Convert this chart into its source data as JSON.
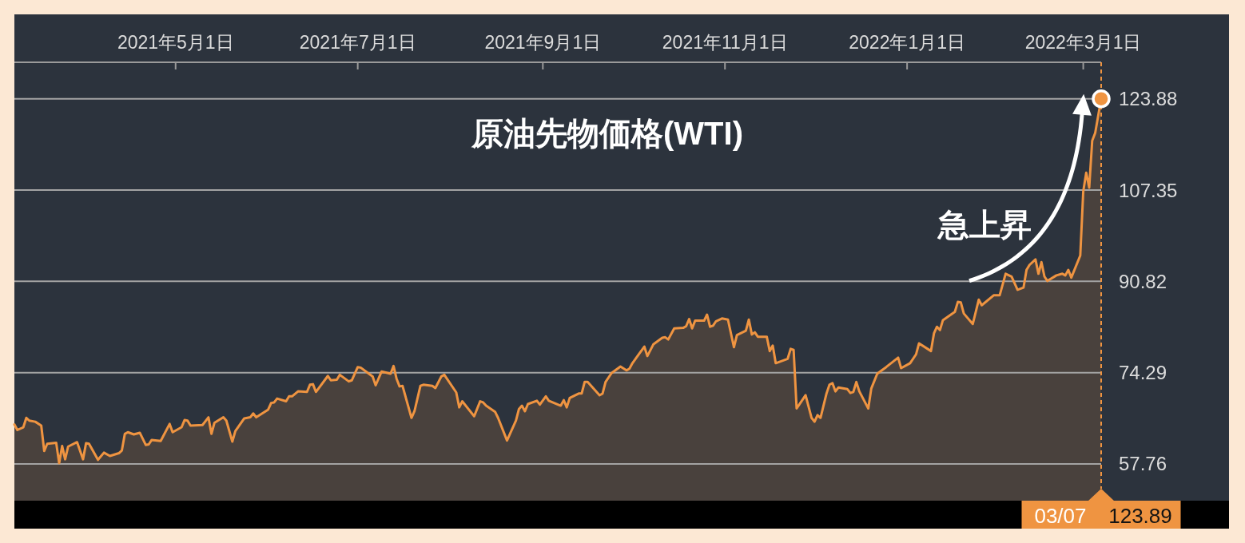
{
  "chart_data": {
    "type": "area",
    "title": "原油先物価格(WTI)",
    "x": [
      "2021-03-08",
      "2021-03-09",
      "2021-03-11",
      "2021-03-12",
      "2021-03-13",
      "2021-03-15",
      "2021-03-17",
      "2021-03-18",
      "2021-03-19",
      "2021-03-22",
      "2021-03-23",
      "2021-03-24",
      "2021-03-25",
      "2021-03-26",
      "2021-03-29",
      "2021-03-31",
      "2021-04-01",
      "2021-04-02",
      "2021-04-05",
      "2021-04-07",
      "2021-04-09",
      "2021-04-12",
      "2021-04-13",
      "2021-04-14",
      "2021-04-15",
      "2021-04-17",
      "2021-04-19",
      "2021-04-21",
      "2021-04-22",
      "2021-04-23",
      "2021-04-26",
      "2021-04-29",
      "2021-04-30",
      "2021-05-03",
      "2021-05-04",
      "2021-05-05",
      "2021-05-06",
      "2021-05-10",
      "2021-05-12",
      "2021-05-13",
      "2021-05-14",
      "2021-05-17",
      "2021-05-18",
      "2021-05-20",
      "2021-05-21",
      "2021-05-24",
      "2021-05-26",
      "2021-05-27",
      "2021-05-28",
      "2021-06-01",
      "2021-06-02",
      "2021-06-03",
      "2021-06-04",
      "2021-06-07",
      "2021-06-08",
      "2021-06-09",
      "2021-06-11",
      "2021-06-14",
      "2021-06-15",
      "2021-06-16",
      "2021-06-17",
      "2021-06-21",
      "2021-06-22",
      "2021-06-24",
      "2021-06-25",
      "2021-06-28",
      "2021-06-29",
      "2021-07-01",
      "2021-07-02",
      "2021-07-06",
      "2021-07-07",
      "2021-07-09",
      "2021-07-12",
      "2021-07-13",
      "2021-07-14",
      "2021-07-15",
      "2021-07-16",
      "2021-07-19",
      "2021-07-20",
      "2021-07-22",
      "2021-07-23",
      "2021-07-26",
      "2021-07-27",
      "2021-07-29",
      "2021-07-30",
      "2021-08-03",
      "2021-08-04",
      "2021-08-05",
      "2021-08-09",
      "2021-08-11",
      "2021-08-12",
      "2021-08-13",
      "2021-08-16",
      "2021-08-17",
      "2021-08-20",
      "2021-08-23",
      "2021-08-24",
      "2021-08-25",
      "2021-08-26",
      "2021-08-27",
      "2021-08-30",
      "2021-08-31",
      "2021-09-02",
      "2021-09-03",
      "2021-09-07",
      "2021-09-08",
      "2021-09-09",
      "2021-09-10",
      "2021-09-13",
      "2021-09-14",
      "2021-09-15",
      "2021-09-16",
      "2021-09-20",
      "2021-09-21",
      "2021-09-22",
      "2021-09-24",
      "2021-09-27",
      "2021-09-29",
      "2021-09-30",
      "2021-10-01",
      "2021-10-03",
      "2021-10-05",
      "2021-10-06",
      "2021-10-08",
      "2021-10-11",
      "2021-10-12",
      "2021-10-13",
      "2021-10-15",
      "2021-10-18",
      "2021-10-19",
      "2021-10-20",
      "2021-10-21",
      "2021-10-22",
      "2021-10-25",
      "2021-10-26",
      "2021-10-27",
      "2021-10-28",
      "2021-10-29",
      "2021-10-31",
      "2021-11-02",
      "2021-11-04",
      "2021-11-05",
      "2021-11-08",
      "2021-11-09",
      "2021-11-10",
      "2021-11-11",
      "2021-11-12",
      "2021-11-15",
      "2021-11-16",
      "2021-11-17",
      "2021-11-18",
      "2021-11-22",
      "2021-11-23",
      "2021-11-24",
      "2021-11-25",
      "2021-11-28",
      "2021-11-30",
      "2021-12-01",
      "2021-12-02",
      "2021-12-03",
      "2021-12-05",
      "2021-12-06",
      "2021-12-07",
      "2021-12-08",
      "2021-12-09",
      "2021-12-12",
      "2021-12-13",
      "2021-12-14",
      "2021-12-15",
      "2021-12-16",
      "2021-12-19",
      "2021-12-20",
      "2021-12-22",
      "2021-12-25",
      "2021-12-29",
      "2021-12-30",
      "2022-01-02",
      "2022-01-04",
      "2022-01-05",
      "2022-01-09",
      "2022-01-10",
      "2022-01-11",
      "2022-01-12",
      "2022-01-13",
      "2022-01-17",
      "2022-01-18",
      "2022-01-19",
      "2022-01-20",
      "2022-01-23",
      "2022-01-25",
      "2022-01-26",
      "2022-01-30",
      "2022-02-01",
      "2022-02-03",
      "2022-02-05",
      "2022-02-07",
      "2022-02-09",
      "2022-02-10",
      "2022-02-11",
      "2022-02-13",
      "2022-02-14",
      "2022-02-15",
      "2022-02-16",
      "2022-02-17",
      "2022-02-20",
      "2022-02-22",
      "2022-02-23",
      "2022-02-24",
      "2022-02-25",
      "2022-02-28",
      "2022-03-01",
      "2022-03-02",
      "2022-03-03",
      "2022-03-04",
      "2022-03-05",
      "2022-03-07"
    ],
    "series": [
      {
        "color": "#ef9441",
        "values": [
          64.9,
          63.9,
          64.4,
          66.1,
          65.6,
          65.4,
          64.7,
          60.1,
          61.4,
          61.6,
          57.9,
          61.0,
          58.6,
          60.9,
          61.7,
          58.6,
          61.5,
          61.4,
          58.5,
          59.8,
          59.2,
          59.7,
          60.2,
          63.2,
          63.5,
          63.1,
          63.4,
          61.2,
          61.3,
          62.1,
          61.9,
          65.0,
          63.5,
          64.4,
          65.7,
          65.6,
          64.7,
          64.8,
          66.2,
          63.2,
          65.2,
          66.2,
          65.6,
          61.8,
          63.7,
          66.0,
          66.2,
          66.9,
          66.2,
          67.6,
          68.8,
          68.9,
          69.6,
          69.1,
          70.0,
          70.0,
          70.9,
          70.8,
          72.1,
          72.2,
          70.8,
          73.7,
          72.9,
          73.0,
          73.9,
          72.7,
          72.9,
          75.3,
          75.2,
          73.6,
          72.0,
          74.5,
          74.1,
          75.5,
          73.2,
          71.8,
          71.9,
          66.1,
          67.3,
          71.9,
          72.1,
          71.9,
          71.5,
          73.6,
          73.9,
          70.7,
          68.0,
          69.1,
          66.4,
          69.1,
          68.9,
          68.3,
          67.2,
          66.1,
          62.0,
          65.6,
          67.7,
          68.3,
          67.3,
          68.6,
          69.2,
          68.5,
          70.0,
          69.2,
          68.3,
          69.3,
          68.0,
          69.7,
          70.5,
          70.5,
          72.6,
          72.6,
          70.2,
          70.5,
          72.6,
          74.2,
          75.4,
          74.7,
          75.0,
          76.0,
          77.5,
          79.0,
          77.3,
          79.4,
          80.6,
          80.7,
          80.3,
          82.3,
          82.4,
          82.7,
          84.0,
          82.3,
          83.7,
          83.7,
          84.8,
          82.6,
          82.8,
          83.6,
          84.1,
          83.9,
          78.9,
          81.1,
          81.9,
          83.9,
          81.2,
          81.6,
          80.8,
          80.8,
          78.2,
          79.2,
          76.0,
          76.8,
          78.6,
          78.4,
          67.8,
          70.2,
          66.1,
          65.4,
          66.6,
          66.1,
          70.5,
          72.1,
          72.4,
          70.9,
          71.6,
          71.3,
          70.6,
          70.8,
          72.6,
          70.9,
          67.8,
          71.4,
          74.1,
          75.3,
          77.0,
          75.1,
          76.0,
          77.6,
          79.6,
          78.2,
          81.4,
          82.6,
          82.0,
          83.8,
          85.3,
          87.1,
          87.0,
          85.0,
          83.1,
          87.5,
          86.5,
          88.3,
          88.3,
          92.2,
          91.7,
          89.3,
          89.7,
          92.9,
          93.8,
          94.8,
          92.2,
          94.3,
          91.7,
          90.9,
          91.9,
          92.2,
          91.9,
          92.9,
          91.5,
          95.5,
          107.1,
          110.5,
          107.8,
          116.3,
          117.7,
          123.89
        ]
      },
      {
        "type": "scatter",
        "x": [
          "2022-03-07"
        ],
        "values": [
          123.89
        ],
        "color": "#ef9441",
        "marker": "circle"
      }
    ],
    "xlim": [
      "2021-03-08",
      "2022-03-07"
    ],
    "xticks": [
      {
        "value": "2021-05-01",
        "label": "2021年5月1日"
      },
      {
        "value": "2021-07-01",
        "label": "2021年7月1日"
      },
      {
        "value": "2021-09-01",
        "label": "2021年9月1日"
      },
      {
        "value": "2021-11-01",
        "label": "2021年11月1日"
      },
      {
        "value": "2022-01-01",
        "label": "2022年1月1日"
      },
      {
        "value": "2022-03-01",
        "label": "2022年3月1日"
      }
    ],
    "ylim": [
      51.1,
      130.5
    ],
    "yticks": [
      57.76,
      74.29,
      90.82,
      107.35,
      123.88
    ],
    "grid": "y",
    "ref_lines": [
      {
        "axis": "x",
        "value": "2022-03-07",
        "label": "03/07",
        "color": "#ef9441",
        "line_style": "dashed"
      }
    ],
    "annotations": [
      "急上昇",
      "123.89"
    ]
  }
}
